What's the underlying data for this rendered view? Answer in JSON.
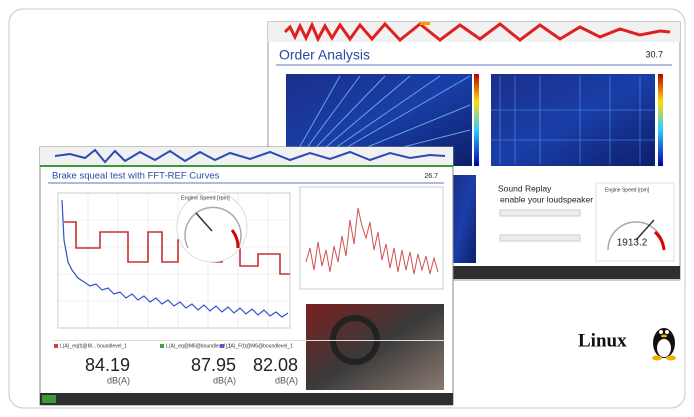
{
  "back_window": {
    "title": "Order Analysis",
    "value": "30.7",
    "sound_replay": {
      "title": "Sound Replay",
      "subtitle": "enable your loudspeaker"
    },
    "gauge": {
      "label": "Engine Speed [rpm]",
      "value": "1913.2"
    }
  },
  "front_window": {
    "title": "Brake squeal test with FFT-REF Curves",
    "value": "26.7",
    "gauge_label": "Engine Speed [rpm]",
    "meters": [
      {
        "label": "L(A)_eq(t)@M... boundlevel_1",
        "value": "84.19",
        "unit": "dB(A)"
      },
      {
        "label": "L(A)_eq@M6@boundlevel_1",
        "value": "87.95",
        "unit": "dB(A)"
      },
      {
        "label": "L(A)_F(t)@M6@boundlevel_1",
        "value": "82.08",
        "unit": "dB(A)"
      }
    ]
  },
  "brand": "Linux"
}
